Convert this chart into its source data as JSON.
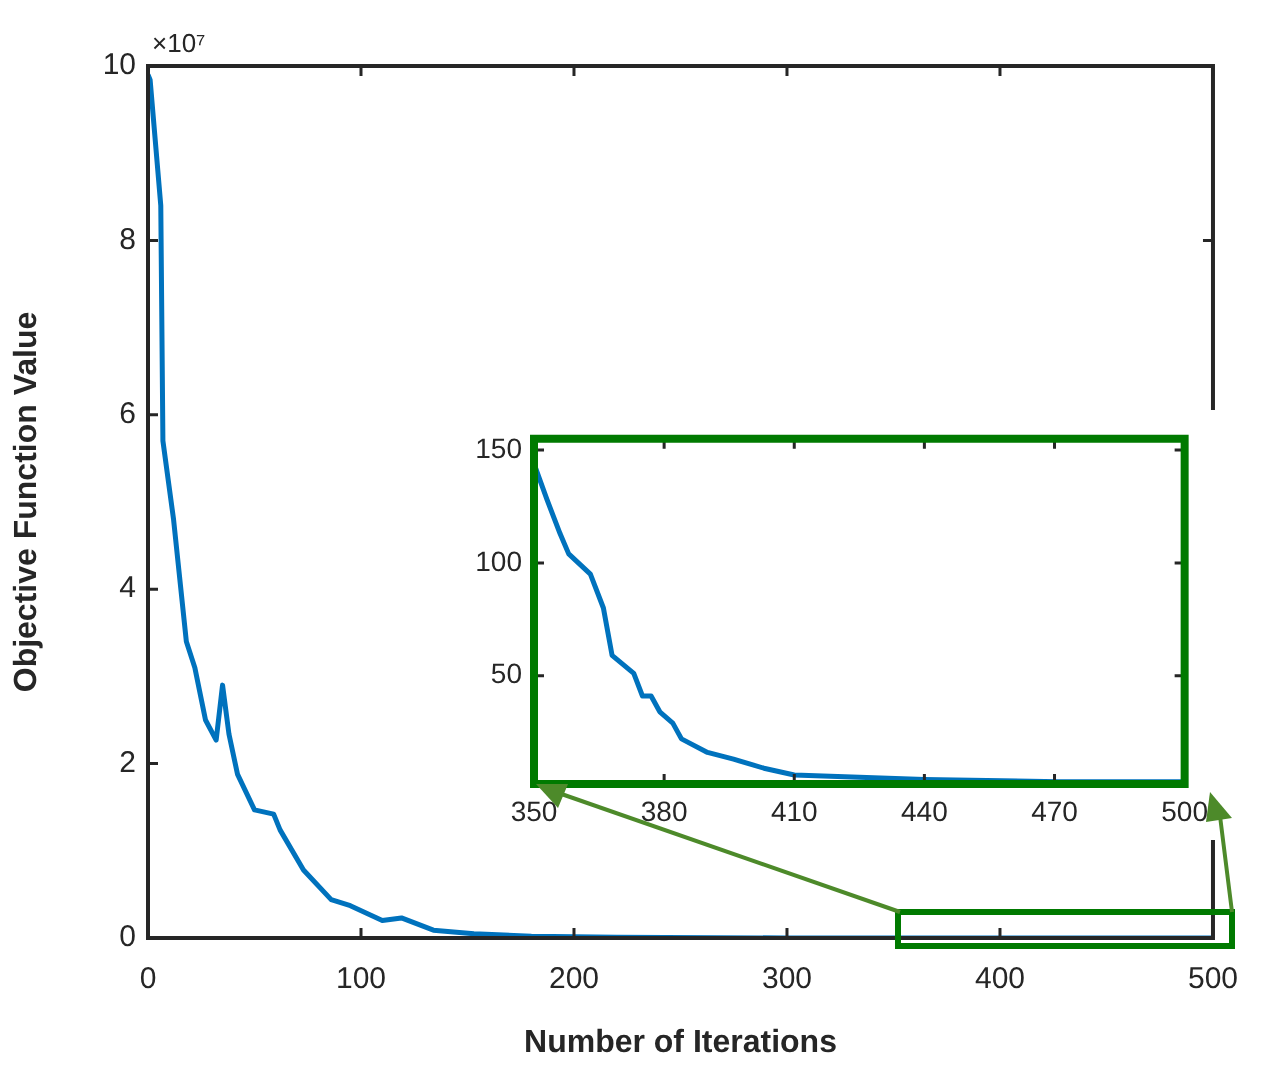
{
  "chart_data": [
    {
      "type": "line",
      "xlabel": "Number of Iterations",
      "ylabel": "Objective Function Value",
      "annotations": [
        "×10⁷"
      ],
      "series": [
        {
          "color": "#0072bd",
          "x": [
            0,
            1,
            6,
            7,
            12,
            18,
            22,
            27,
            32,
            35,
            38,
            42,
            50,
            59,
            62,
            73,
            86,
            95,
            110,
            119,
            134,
            153,
            180,
            220,
            300,
            500
          ],
          "values": [
            9.9,
            9.84,
            8.4,
            5.7,
            4.8,
            3.4,
            3.1,
            2.5,
            2.27,
            2.9,
            2.34,
            1.88,
            1.47,
            1.42,
            1.24,
            0.78,
            0.44,
            0.37,
            0.2,
            0.23,
            0.09,
            0.05,
            0.02,
            0.01,
            0,
            0
          ]
        }
      ],
      "xlim": [
        0,
        500
      ],
      "xticks": [
        0,
        100,
        200,
        300,
        400,
        500
      ],
      "ylim": [
        0,
        10
      ],
      "yticks": [
        0,
        2,
        4,
        6,
        8,
        10
      ],
      "grid": false,
      "legend": false,
      "marker": "none"
    },
    {
      "type": "line",
      "series": [
        {
          "color": "#0072bd",
          "x": [
            350,
            353,
            356,
            358,
            363,
            366,
            368,
            373,
            375,
            377,
            379,
            382,
            384,
            390,
            396,
            403,
            410,
            425,
            440,
            471,
            500
          ],
          "values": [
            144,
            128,
            113,
            104,
            95,
            80,
            59,
            51,
            41,
            41,
            34,
            29,
            22,
            16,
            13,
            9,
            6,
            5,
            4,
            3,
            3
          ]
        }
      ],
      "xlim": [
        350,
        500
      ],
      "xticks": [
        350,
        380,
        410,
        440,
        470,
        500
      ],
      "ylim": [
        2,
        155
      ],
      "yticks": [
        50,
        100,
        150
      ],
      "grid": false,
      "legend": false,
      "marker": "none"
    }
  ]
}
